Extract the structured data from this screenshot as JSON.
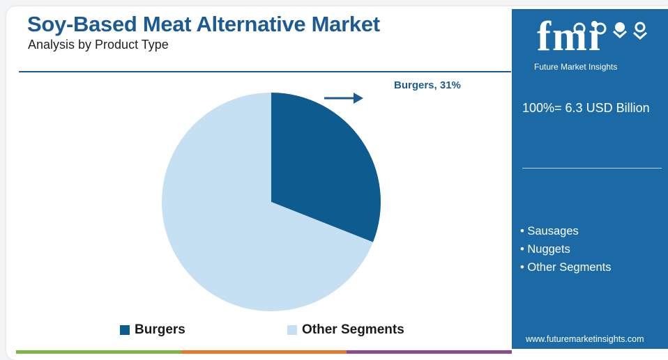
{
  "header": {
    "title": "Soy-Based Meat Alternative Market",
    "subtitle": "Analysis by Product Type"
  },
  "chart_data": {
    "type": "pie",
    "categories": [
      "Burgers",
      "Other Segments"
    ],
    "values": [
      31,
      69
    ],
    "unit": "%",
    "annotations": [
      "Burgers, 31%"
    ],
    "legend": {
      "placement": "bottom",
      "entries": [
        {
          "label": "Burgers",
          "color": "#0d5b8f"
        },
        {
          "label": "Other Segments",
          "color": "#c6e0f3"
        }
      ]
    }
  },
  "callout": {
    "label": "Burgers, 31%"
  },
  "side_panel": {
    "logo_text": "fmi",
    "logo_tagline": "Future Market Insights",
    "total": "100%= 6.3 USD Billion",
    "segments": [
      "• Sausages",
      "• Nuggets",
      "• Other Segments"
    ],
    "website": "www.futuremarketinsights.com",
    "background_color": "#1b6aa5"
  },
  "colors": {
    "title": "#1c5a93",
    "burgers": "#0d5b8f",
    "other": "#c6e0f3",
    "bottom_bar": [
      "#7ab648",
      "#e8762d",
      "#8a4c8e"
    ]
  },
  "icons": {
    "arrow": "arrow-right-icon",
    "logo_figures": "people-figures-icon"
  }
}
